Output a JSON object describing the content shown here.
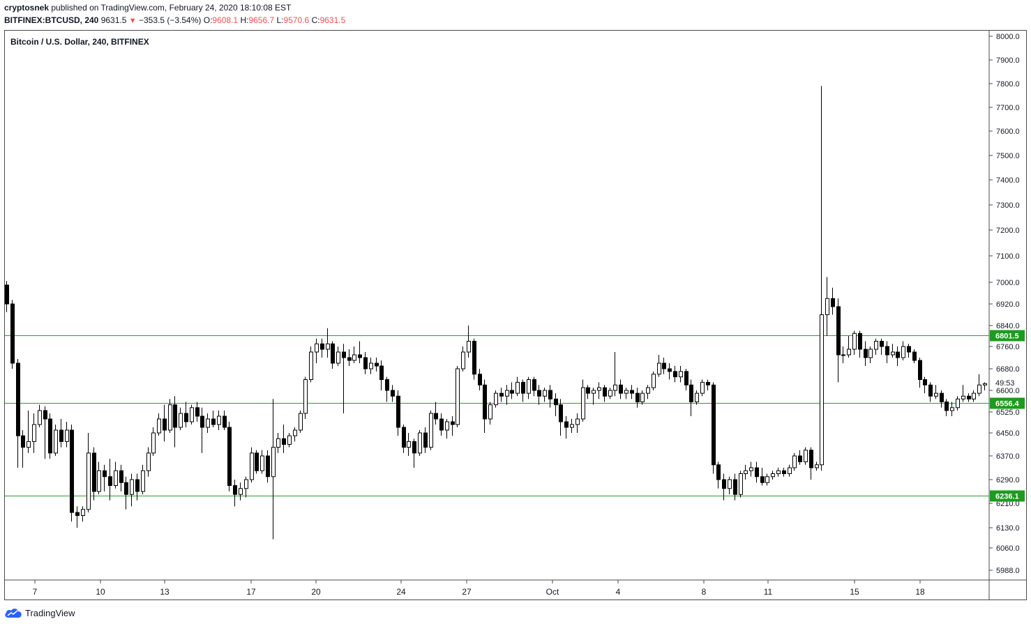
{
  "header": {
    "author": "cryptosnek",
    "published": "published on TradingView.com, February 24, 2020 18:10:08 EST",
    "symbol": "BITFINEX:BTCUSD, 240",
    "price": "9631.5",
    "change_arrow": "▼",
    "change": "−353.5 (−3.54%)",
    "o_label": "O:",
    "o_value": "9608.1",
    "h_label": "H:",
    "h_value": "9656.7",
    "l_label": "L:",
    "l_value": "9570.6",
    "c_label": "C:",
    "c_value": "9631.5"
  },
  "brand": {
    "name": "TradingView"
  },
  "colors": {
    "level_line": "#2e9b2e",
    "level_badge": "#1e9b1e",
    "candle_down": "#000000",
    "candle_up": "#ffffff"
  },
  "chart_data": {
    "type": "candlestick",
    "title": "Bitcoin / U.S. Dollar, 240, BITFINEX",
    "y_ticks": [
      "8000.0",
      "7900.0",
      "7800.0",
      "7700.0",
      "7600.0",
      "7500.0",
      "7400.0",
      "7300.0",
      "7200.0",
      "7100.0",
      "7000.0",
      "6920.0",
      "6840.0",
      "6760.0",
      "6680.0",
      "6600.0",
      "6525.0",
      "6450.0",
      "6370.0",
      "6290.0",
      "6210.0",
      "6130.0",
      "6060.0",
      "5988.0"
    ],
    "x_ticks": [
      "7",
      "10",
      "13",
      "17",
      "20",
      "24",
      "27",
      "Oct",
      "4",
      "8",
      "11",
      "15",
      "18"
    ],
    "countdown": "49:53",
    "horizontal_levels": [
      {
        "label": "6801.5",
        "value": 6801.5
      },
      {
        "label": "6556.4",
        "value": 6556.4
      },
      {
        "label": "6236.1",
        "value": 6236.1
      }
    ],
    "candles": [
      {
        "o": 6990,
        "h": 7005,
        "l": 6890,
        "c": 6920
      },
      {
        "o": 6920,
        "h": 6935,
        "l": 6680,
        "c": 6700
      },
      {
        "o": 6700,
        "h": 6715,
        "l": 6330,
        "c": 6440
      },
      {
        "o": 6440,
        "h": 6460,
        "l": 6330,
        "c": 6400
      },
      {
        "o": 6400,
        "h": 6530,
        "l": 6380,
        "c": 6420
      },
      {
        "o": 6420,
        "h": 6520,
        "l": 6380,
        "c": 6480
      },
      {
        "o": 6480,
        "h": 6550,
        "l": 6470,
        "c": 6530
      },
      {
        "o": 6530,
        "h": 6545,
        "l": 6360,
        "c": 6500
      },
      {
        "o": 6500,
        "h": 6520,
        "l": 6360,
        "c": 6380
      },
      {
        "o": 6380,
        "h": 6480,
        "l": 6370,
        "c": 6460
      },
      {
        "o": 6460,
        "h": 6500,
        "l": 6400,
        "c": 6420
      },
      {
        "o": 6420,
        "h": 6490,
        "l": 6400,
        "c": 6460
      },
      {
        "o": 6460,
        "h": 6480,
        "l": 6150,
        "c": 6180
      },
      {
        "o": 6180,
        "h": 6200,
        "l": 6130,
        "c": 6170
      },
      {
        "o": 6170,
        "h": 6200,
        "l": 6150,
        "c": 6190
      },
      {
        "o": 6190,
        "h": 6450,
        "l": 6180,
        "c": 6380
      },
      {
        "o": 6380,
        "h": 6400,
        "l": 6220,
        "c": 6250
      },
      {
        "o": 6250,
        "h": 6350,
        "l": 6240,
        "c": 6320
      },
      {
        "o": 6320,
        "h": 6340,
        "l": 6250,
        "c": 6300
      },
      {
        "o": 6300,
        "h": 6360,
        "l": 6220,
        "c": 6270
      },
      {
        "o": 6270,
        "h": 6350,
        "l": 6260,
        "c": 6320
      },
      {
        "o": 6320,
        "h": 6340,
        "l": 6250,
        "c": 6280
      },
      {
        "o": 6280,
        "h": 6300,
        "l": 6190,
        "c": 6240
      },
      {
        "o": 6240,
        "h": 6310,
        "l": 6200,
        "c": 6290
      },
      {
        "o": 6290,
        "h": 6310,
        "l": 6220,
        "c": 6250
      },
      {
        "o": 6250,
        "h": 6340,
        "l": 6240,
        "c": 6320
      },
      {
        "o": 6320,
        "h": 6400,
        "l": 6300,
        "c": 6380
      },
      {
        "o": 6380,
        "h": 6470,
        "l": 6370,
        "c": 6450
      },
      {
        "o": 6450,
        "h": 6520,
        "l": 6440,
        "c": 6500
      },
      {
        "o": 6500,
        "h": 6550,
        "l": 6420,
        "c": 6460
      },
      {
        "o": 6460,
        "h": 6570,
        "l": 6450,
        "c": 6550
      },
      {
        "o": 6550,
        "h": 6580,
        "l": 6400,
        "c": 6470
      },
      {
        "o": 6470,
        "h": 6540,
        "l": 6460,
        "c": 6520
      },
      {
        "o": 6520,
        "h": 6560,
        "l": 6470,
        "c": 6490
      },
      {
        "o": 6490,
        "h": 6550,
        "l": 6480,
        "c": 6540
      },
      {
        "o": 6540,
        "h": 6560,
        "l": 6490,
        "c": 6510
      },
      {
        "o": 6510,
        "h": 6540,
        "l": 6380,
        "c": 6470
      },
      {
        "o": 6470,
        "h": 6520,
        "l": 6450,
        "c": 6500
      },
      {
        "o": 6500,
        "h": 6530,
        "l": 6470,
        "c": 6480
      },
      {
        "o": 6480,
        "h": 6530,
        "l": 6460,
        "c": 6510
      },
      {
        "o": 6510,
        "h": 6530,
        "l": 6460,
        "c": 6470
      },
      {
        "o": 6470,
        "h": 6490,
        "l": 6250,
        "c": 6270
      },
      {
        "o": 6270,
        "h": 6290,
        "l": 6200,
        "c": 6240
      },
      {
        "o": 6240,
        "h": 6280,
        "l": 6220,
        "c": 6260
      },
      {
        "o": 6260,
        "h": 6300,
        "l": 6230,
        "c": 6290
      },
      {
        "o": 6290,
        "h": 6400,
        "l": 6280,
        "c": 6380
      },
      {
        "o": 6380,
        "h": 6390,
        "l": 6310,
        "c": 6320
      },
      {
        "o": 6320,
        "h": 6390,
        "l": 6310,
        "c": 6370
      },
      {
        "o": 6370,
        "h": 6390,
        "l": 6280,
        "c": 6300
      },
      {
        "o": 6300,
        "h": 6570,
        "l": 6090,
        "c": 6400
      },
      {
        "o": 6400,
        "h": 6450,
        "l": 6380,
        "c": 6430
      },
      {
        "o": 6430,
        "h": 6480,
        "l": 6380,
        "c": 6410
      },
      {
        "o": 6410,
        "h": 6450,
        "l": 6400,
        "c": 6440
      },
      {
        "o": 6440,
        "h": 6470,
        "l": 6420,
        "c": 6460
      },
      {
        "o": 6460,
        "h": 6530,
        "l": 6450,
        "c": 6520
      },
      {
        "o": 6520,
        "h": 6650,
        "l": 6500,
        "c": 6640
      },
      {
        "o": 6640,
        "h": 6760,
        "l": 6630,
        "c": 6740
      },
      {
        "o": 6740,
        "h": 6790,
        "l": 6700,
        "c": 6770
      },
      {
        "o": 6770,
        "h": 6790,
        "l": 6720,
        "c": 6750
      },
      {
        "o": 6750,
        "h": 6830,
        "l": 6720,
        "c": 6770
      },
      {
        "o": 6770,
        "h": 6780,
        "l": 6680,
        "c": 6700
      },
      {
        "o": 6700,
        "h": 6760,
        "l": 6690,
        "c": 6740
      },
      {
        "o": 6740,
        "h": 6770,
        "l": 6520,
        "c": 6720
      },
      {
        "o": 6720,
        "h": 6750,
        "l": 6690,
        "c": 6710
      },
      {
        "o": 6710,
        "h": 6760,
        "l": 6700,
        "c": 6730
      },
      {
        "o": 6730,
        "h": 6780,
        "l": 6700,
        "c": 6720
      },
      {
        "o": 6720,
        "h": 6740,
        "l": 6660,
        "c": 6680
      },
      {
        "o": 6680,
        "h": 6720,
        "l": 6660,
        "c": 6700
      },
      {
        "o": 6700,
        "h": 6720,
        "l": 6670,
        "c": 6690
      },
      {
        "o": 6690,
        "h": 6710,
        "l": 6600,
        "c": 6640
      },
      {
        "o": 6640,
        "h": 6650,
        "l": 6560,
        "c": 6600
      },
      {
        "o": 6600,
        "h": 6620,
        "l": 6560,
        "c": 6580
      },
      {
        "o": 6580,
        "h": 6600,
        "l": 6440,
        "c": 6470
      },
      {
        "o": 6470,
        "h": 6480,
        "l": 6380,
        "c": 6400
      },
      {
        "o": 6400,
        "h": 6450,
        "l": 6370,
        "c": 6420
      },
      {
        "o": 6420,
        "h": 6430,
        "l": 6330,
        "c": 6380
      },
      {
        "o": 6380,
        "h": 6460,
        "l": 6370,
        "c": 6450
      },
      {
        "o": 6450,
        "h": 6470,
        "l": 6380,
        "c": 6400
      },
      {
        "o": 6400,
        "h": 6530,
        "l": 6390,
        "c": 6520
      },
      {
        "o": 6520,
        "h": 6560,
        "l": 6480,
        "c": 6500
      },
      {
        "o": 6500,
        "h": 6520,
        "l": 6440,
        "c": 6460
      },
      {
        "o": 6460,
        "h": 6500,
        "l": 6430,
        "c": 6490
      },
      {
        "o": 6490,
        "h": 6510,
        "l": 6440,
        "c": 6480
      },
      {
        "o": 6480,
        "h": 6690,
        "l": 6470,
        "c": 6680
      },
      {
        "o": 6680,
        "h": 6760,
        "l": 6670,
        "c": 6740
      },
      {
        "o": 6740,
        "h": 6840,
        "l": 6720,
        "c": 6780
      },
      {
        "o": 6780,
        "h": 6790,
        "l": 6640,
        "c": 6660
      },
      {
        "o": 6660,
        "h": 6680,
        "l": 6600,
        "c": 6620
      },
      {
        "o": 6620,
        "h": 6640,
        "l": 6450,
        "c": 6500
      },
      {
        "o": 6500,
        "h": 6560,
        "l": 6480,
        "c": 6550
      },
      {
        "o": 6550,
        "h": 6600,
        "l": 6540,
        "c": 6590
      },
      {
        "o": 6590,
        "h": 6610,
        "l": 6560,
        "c": 6580
      },
      {
        "o": 6580,
        "h": 6620,
        "l": 6550,
        "c": 6600
      },
      {
        "o": 6600,
        "h": 6630,
        "l": 6570,
        "c": 6590
      },
      {
        "o": 6590,
        "h": 6650,
        "l": 6580,
        "c": 6630
      },
      {
        "o": 6630,
        "h": 6640,
        "l": 6560,
        "c": 6590
      },
      {
        "o": 6590,
        "h": 6650,
        "l": 6570,
        "c": 6640
      },
      {
        "o": 6640,
        "h": 6650,
        "l": 6580,
        "c": 6600
      },
      {
        "o": 6600,
        "h": 6620,
        "l": 6550,
        "c": 6580
      },
      {
        "o": 6580,
        "h": 6610,
        "l": 6560,
        "c": 6600
      },
      {
        "o": 6600,
        "h": 6620,
        "l": 6540,
        "c": 6570
      },
      {
        "o": 6570,
        "h": 6590,
        "l": 6510,
        "c": 6550
      },
      {
        "o": 6550,
        "h": 6570,
        "l": 6440,
        "c": 6490
      },
      {
        "o": 6490,
        "h": 6510,
        "l": 6430,
        "c": 6470
      },
      {
        "o": 6470,
        "h": 6500,
        "l": 6450,
        "c": 6480
      },
      {
        "o": 6480,
        "h": 6520,
        "l": 6450,
        "c": 6500
      },
      {
        "o": 6500,
        "h": 6640,
        "l": 6490,
        "c": 6610
      },
      {
        "o": 6610,
        "h": 6620,
        "l": 6570,
        "c": 6590
      },
      {
        "o": 6590,
        "h": 6610,
        "l": 6550,
        "c": 6600
      },
      {
        "o": 6600,
        "h": 6630,
        "l": 6570,
        "c": 6610
      },
      {
        "o": 6610,
        "h": 6620,
        "l": 6560,
        "c": 6580
      },
      {
        "o": 6580,
        "h": 6610,
        "l": 6570,
        "c": 6600
      },
      {
        "o": 6600,
        "h": 6740,
        "l": 6580,
        "c": 6620
      },
      {
        "o": 6620,
        "h": 6640,
        "l": 6570,
        "c": 6590
      },
      {
        "o": 6590,
        "h": 6610,
        "l": 6570,
        "c": 6600
      },
      {
        "o": 6600,
        "h": 6620,
        "l": 6570,
        "c": 6590
      },
      {
        "o": 6590,
        "h": 6610,
        "l": 6540,
        "c": 6560
      },
      {
        "o": 6560,
        "h": 6600,
        "l": 6550,
        "c": 6590
      },
      {
        "o": 6590,
        "h": 6620,
        "l": 6570,
        "c": 6610
      },
      {
        "o": 6610,
        "h": 6670,
        "l": 6600,
        "c": 6660
      },
      {
        "o": 6660,
        "h": 6730,
        "l": 6650,
        "c": 6700
      },
      {
        "o": 6700,
        "h": 6720,
        "l": 6660,
        "c": 6680
      },
      {
        "o": 6680,
        "h": 6700,
        "l": 6640,
        "c": 6670
      },
      {
        "o": 6670,
        "h": 6690,
        "l": 6630,
        "c": 6650
      },
      {
        "o": 6650,
        "h": 6690,
        "l": 6630,
        "c": 6670
      },
      {
        "o": 6670,
        "h": 6680,
        "l": 6600,
        "c": 6620
      },
      {
        "o": 6620,
        "h": 6640,
        "l": 6510,
        "c": 6560
      },
      {
        "o": 6560,
        "h": 6600,
        "l": 6550,
        "c": 6590
      },
      {
        "o": 6590,
        "h": 6640,
        "l": 6580,
        "c": 6630
      },
      {
        "o": 6630,
        "h": 6640,
        "l": 6600,
        "c": 6620
      },
      {
        "o": 6620,
        "h": 6630,
        "l": 6310,
        "c": 6340
      },
      {
        "o": 6340,
        "h": 6350,
        "l": 6260,
        "c": 6290
      },
      {
        "o": 6290,
        "h": 6310,
        "l": 6220,
        "c": 6260
      },
      {
        "o": 6260,
        "h": 6300,
        "l": 6240,
        "c": 6290
      },
      {
        "o": 6290,
        "h": 6310,
        "l": 6220,
        "c": 6240
      },
      {
        "o": 6240,
        "h": 6320,
        "l": 6230,
        "c": 6310
      },
      {
        "o": 6310,
        "h": 6340,
        "l": 6290,
        "c": 6320
      },
      {
        "o": 6320,
        "h": 6350,
        "l": 6300,
        "c": 6330
      },
      {
        "o": 6330,
        "h": 6350,
        "l": 6280,
        "c": 6300
      },
      {
        "o": 6300,
        "h": 6330,
        "l": 6270,
        "c": 6280
      },
      {
        "o": 6280,
        "h": 6310,
        "l": 6270,
        "c": 6300
      },
      {
        "o": 6300,
        "h": 6320,
        "l": 6290,
        "c": 6310
      },
      {
        "o": 6310,
        "h": 6330,
        "l": 6300,
        "c": 6320
      },
      {
        "o": 6320,
        "h": 6330,
        "l": 6300,
        "c": 6310
      },
      {
        "o": 6310,
        "h": 6340,
        "l": 6300,
        "c": 6330
      },
      {
        "o": 6330,
        "h": 6380,
        "l": 6320,
        "c": 6370
      },
      {
        "o": 6370,
        "h": 6390,
        "l": 6340,
        "c": 6350
      },
      {
        "o": 6350,
        "h": 6400,
        "l": 6340,
        "c": 6390
      },
      {
        "o": 6390,
        "h": 6400,
        "l": 6290,
        "c": 6330
      },
      {
        "o": 6330,
        "h": 6350,
        "l": 6320,
        "c": 6340
      },
      {
        "o": 6340,
        "h": 7790,
        "l": 6320,
        "c": 6880
      },
      {
        "o": 6880,
        "h": 7020,
        "l": 6800,
        "c": 6940
      },
      {
        "o": 6940,
        "h": 6980,
        "l": 6880,
        "c": 6910
      },
      {
        "o": 6910,
        "h": 6940,
        "l": 6630,
        "c": 6730
      },
      {
        "o": 6730,
        "h": 6760,
        "l": 6700,
        "c": 6730
      },
      {
        "o": 6730,
        "h": 6800,
        "l": 6720,
        "c": 6750
      },
      {
        "o": 6750,
        "h": 6820,
        "l": 6730,
        "c": 6810
      },
      {
        "o": 6810,
        "h": 6820,
        "l": 6720,
        "c": 6750
      },
      {
        "o": 6750,
        "h": 6780,
        "l": 6690,
        "c": 6720
      },
      {
        "o": 6720,
        "h": 6760,
        "l": 6700,
        "c": 6750
      },
      {
        "o": 6750,
        "h": 6790,
        "l": 6730,
        "c": 6780
      },
      {
        "o": 6780,
        "h": 6790,
        "l": 6730,
        "c": 6760
      },
      {
        "o": 6760,
        "h": 6780,
        "l": 6700,
        "c": 6730
      },
      {
        "o": 6730,
        "h": 6770,
        "l": 6720,
        "c": 6740
      },
      {
        "o": 6740,
        "h": 6760,
        "l": 6690,
        "c": 6720
      },
      {
        "o": 6720,
        "h": 6780,
        "l": 6710,
        "c": 6760
      },
      {
        "o": 6760,
        "h": 6770,
        "l": 6720,
        "c": 6740
      },
      {
        "o": 6740,
        "h": 6750,
        "l": 6700,
        "c": 6710
      },
      {
        "o": 6710,
        "h": 6720,
        "l": 6610,
        "c": 6640
      },
      {
        "o": 6640,
        "h": 6650,
        "l": 6590,
        "c": 6620
      },
      {
        "o": 6620,
        "h": 6630,
        "l": 6560,
        "c": 6580
      },
      {
        "o": 6580,
        "h": 6620,
        "l": 6570,
        "c": 6590
      },
      {
        "o": 6590,
        "h": 6600,
        "l": 6540,
        "c": 6560
      },
      {
        "o": 6560,
        "h": 6570,
        "l": 6510,
        "c": 6530
      },
      {
        "o": 6530,
        "h": 6560,
        "l": 6510,
        "c": 6540
      },
      {
        "o": 6540,
        "h": 6580,
        "l": 6530,
        "c": 6570
      },
      {
        "o": 6570,
        "h": 6620,
        "l": 6560,
        "c": 6580
      },
      {
        "o": 6580,
        "h": 6590,
        "l": 6560,
        "c": 6570
      },
      {
        "o": 6570,
        "h": 6600,
        "l": 6560,
        "c": 6590
      },
      {
        "o": 6590,
        "h": 6660,
        "l": 6580,
        "c": 6620
      },
      {
        "o": 6620,
        "h": 6630,
        "l": 6600,
        "c": 6625
      }
    ]
  }
}
